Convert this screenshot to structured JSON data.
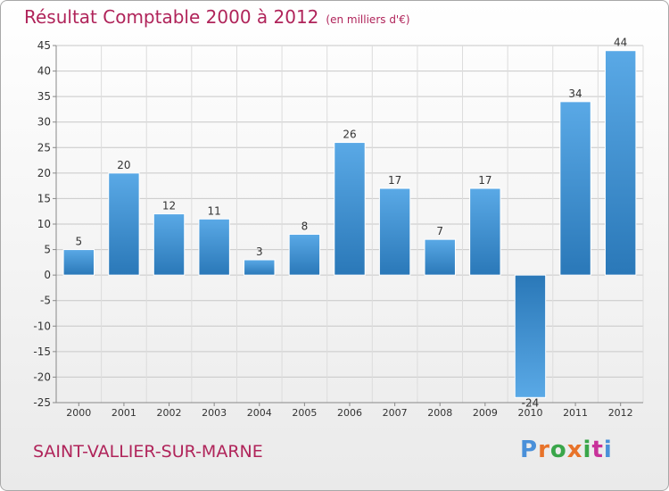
{
  "header": {
    "title": "Résultat Comptable 2000 à 2012",
    "subtitle": "(en milliers d'€)"
  },
  "footer": {
    "commune": "SAINT-VALLIER-SUR-MARNE",
    "logo": "Proxiti"
  },
  "colors": {
    "title": "#b0245a",
    "bar_light": "#5aa9e6",
    "bar_dark": "#2a78b8",
    "grid": "#c8c8c8",
    "logo": [
      "#4a90d9",
      "#e8732a",
      "#3aa64a",
      "#e8732a",
      "#3aa64a",
      "#c8329a",
      "#4a90d9"
    ]
  },
  "chart_data": {
    "type": "bar",
    "title": "Résultat Comptable 2000 à 2012",
    "subtitle": "(en milliers d'€)",
    "xlabel": "",
    "ylabel": "",
    "categories": [
      "2000",
      "2001",
      "2002",
      "2003",
      "2004",
      "2005",
      "2006",
      "2007",
      "2008",
      "2009",
      "2010",
      "2011",
      "2012"
    ],
    "values": [
      5,
      20,
      12,
      11,
      3,
      8,
      26,
      17,
      7,
      17,
      -24,
      34,
      44
    ],
    "ylim": [
      -25,
      45
    ],
    "yticks": [
      -25,
      -20,
      -15,
      -10,
      -5,
      0,
      5,
      10,
      15,
      20,
      25,
      30,
      35,
      40,
      45
    ],
    "ytick_labels": [
      "-25",
      "-20",
      "-15",
      "-10",
      "-5",
      "0",
      "5",
      "10",
      "15",
      "20",
      "25",
      "30",
      "35",
      "40",
      "45"
    ],
    "grid": true,
    "legend": "none"
  }
}
